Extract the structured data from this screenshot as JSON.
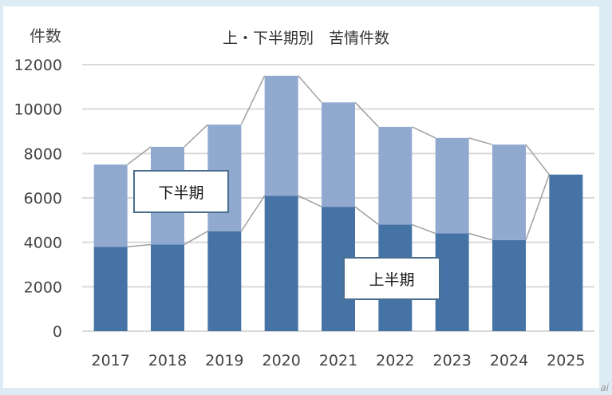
{
  "chart_data": {
    "type": "bar",
    "stacked": true,
    "title": "上・下半期別　苦情件数",
    "ylabel": "件数",
    "xlabel": "",
    "ylim": [
      0,
      12000
    ],
    "yticks": [
      0,
      2000,
      4000,
      6000,
      8000,
      10000,
      12000
    ],
    "grid": true,
    "categories": [
      "2017",
      "2018",
      "2019",
      "2020",
      "2021",
      "2022",
      "2023",
      "2024",
      "2025"
    ],
    "series": [
      {
        "name": "上半期",
        "color": "#4673a6",
        "values": [
          3800,
          3900,
          4500,
          6100,
          5600,
          4800,
          4400,
          4100,
          7050
        ]
      },
      {
        "name": "下半期",
        "color": "#91a9cf",
        "values": [
          3700,
          4400,
          4800,
          5400,
          4700,
          4400,
          4300,
          4300,
          null
        ]
      }
    ],
    "series_lines_color": "#a0a0a0"
  }
}
